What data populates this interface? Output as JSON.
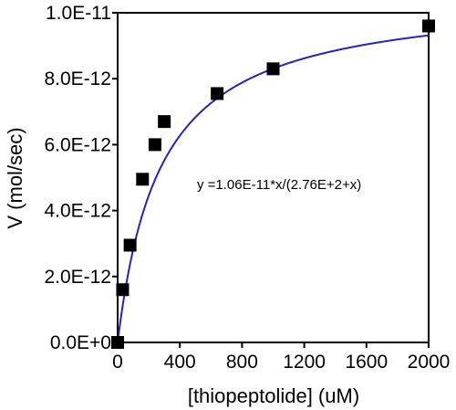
{
  "chart_data": {
    "type": "scatter",
    "title": "",
    "xlabel": "[thiopeptolide] (uM)",
    "ylabel": "V (mol/sec)",
    "xlim": [
      0,
      2000
    ],
    "ylim": [
      0,
      1e-11
    ],
    "x_ticks": [
      0,
      400,
      800,
      1200,
      1600,
      2000
    ],
    "x_tick_labels": [
      "0",
      "400",
      "800",
      "1200",
      "1600",
      "2000"
    ],
    "y_ticks": [
      0,
      2e-12,
      4e-12,
      6e-12,
      8e-12,
      1e-11
    ],
    "y_tick_labels": [
      "0.0E+0",
      "2.0E-12",
      "4.0E-12",
      "6.0E-12",
      "8.0E-12",
      "1.0E-11"
    ],
    "grid": false,
    "legend": "none",
    "series": [
      {
        "marker": "square",
        "color": "#000000",
        "x": [
          0,
          32,
          80,
          160,
          240,
          300,
          640,
          1000,
          2000
        ],
        "y": [
          0,
          1.6e-12,
          2.95e-12,
          4.95e-12,
          6e-12,
          6.7e-12,
          7.55e-12,
          8.3e-12,
          9.6e-12
        ]
      }
    ],
    "fit": {
      "type": "line",
      "color": "#2222cc",
      "model": "michaelis-menten",
      "vmax": 1.06e-11,
      "km": 276,
      "x_range": [
        0,
        2000
      ]
    },
    "annotation": "y =1.06E-11*x/(2.76E+2+x)"
  }
}
